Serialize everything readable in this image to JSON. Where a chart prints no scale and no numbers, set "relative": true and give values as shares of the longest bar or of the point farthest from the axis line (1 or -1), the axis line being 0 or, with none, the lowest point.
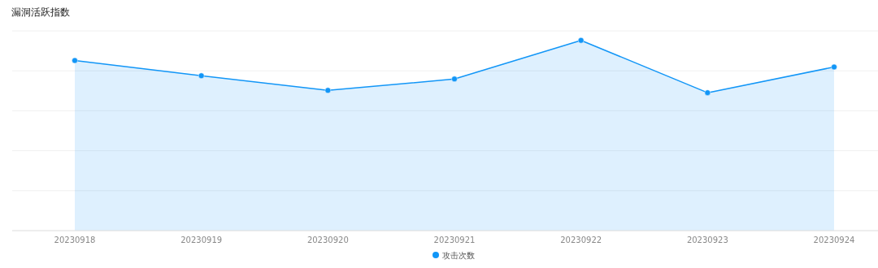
{
  "chart_data": {
    "type": "area",
    "title": "漏洞活跃指数",
    "categories": [
      "20230918",
      "20230919",
      "20230920",
      "20230921",
      "20230922",
      "20230923",
      "20230924"
    ],
    "relative": true,
    "grid": "y",
    "legend": "bottom",
    "marker": "circle",
    "series": [
      {
        "name": "攻击次数",
        "color": "#1296f7",
        "values": [
          0.894,
          0.814,
          0.737,
          0.797,
          1,
          0.725,
          0.86
        ]
      }
    ]
  }
}
